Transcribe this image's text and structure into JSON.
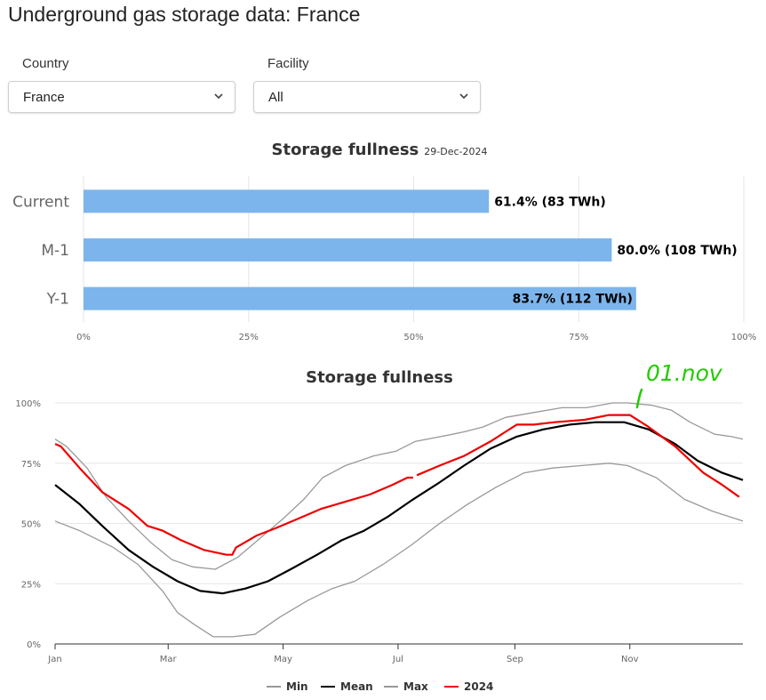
{
  "page": {
    "title": "Underground gas storage data: France"
  },
  "filters": {
    "country": {
      "label": "Country",
      "value": "France"
    },
    "facility": {
      "label": "Facility",
      "value": "All"
    }
  },
  "colors": {
    "bar": "#7cb5ec",
    "min": "#999999",
    "mean": "#000000",
    "max": "#999999",
    "y2024": "#ee0000",
    "annotation": "#22cc00",
    "grid": "#e6e6e6"
  },
  "annotation": {
    "text": "01.nov"
  },
  "chart_data": [
    {
      "type": "bar",
      "orientation": "horizontal",
      "title": "Storage fullness",
      "subtitle": "29-Dec-2024",
      "categories": [
        "Current",
        "M-1",
        "Y-1"
      ],
      "values": [
        61.4,
        80.0,
        83.7
      ],
      "data_labels": [
        "61.4% (83 TWh)",
        "80.0% (108 TWh)",
        "83.7% (112 TWh)"
      ],
      "xlim": [
        0,
        100
      ],
      "xticks": [
        "0%",
        "25%",
        "50%",
        "75%",
        "100%"
      ],
      "grid": true
    },
    {
      "type": "line",
      "title": "Storage fullness",
      "xlim_day": [
        1,
        366
      ],
      "ylim": [
        0,
        100
      ],
      "yticks": [
        "0%",
        "25%",
        "50%",
        "75%",
        "100%"
      ],
      "month_ticks": [
        {
          "label": "Jan",
          "day": 1
        },
        {
          "label": "Mar",
          "day": 61
        },
        {
          "label": "May",
          "day": 122
        },
        {
          "label": "Jul",
          "day": 183
        },
        {
          "label": "Sep",
          "day": 245
        },
        {
          "label": "Nov",
          "day": 306
        }
      ],
      "legend_position": "bottom",
      "series": [
        {
          "name": "Min",
          "color_key": "min",
          "points": [
            [
              1,
              51
            ],
            [
              14,
              47
            ],
            [
              32,
              40
            ],
            [
              45,
              33
            ],
            [
              58,
              22
            ],
            [
              66,
              13
            ],
            [
              75,
              8
            ],
            [
              85,
              3
            ],
            [
              95,
              3
            ],
            [
              107,
              4
            ],
            [
              120,
              11
            ],
            [
              135,
              18
            ],
            [
              148,
              23
            ],
            [
              160,
              26
            ],
            [
              175,
              33
            ],
            [
              190,
              41
            ],
            [
              205,
              50
            ],
            [
              220,
              58
            ],
            [
              235,
              65
            ],
            [
              250,
              71
            ],
            [
              265,
              73
            ],
            [
              280,
              74
            ],
            [
              295,
              75
            ],
            [
              305,
              74
            ],
            [
              320,
              69
            ],
            [
              335,
              60
            ],
            [
              350,
              55
            ],
            [
              366,
              51
            ]
          ]
        },
        {
          "name": "Mean",
          "color_key": "mean",
          "points": [
            [
              1,
              66
            ],
            [
              14,
              58
            ],
            [
              26,
              49
            ],
            [
              40,
              39
            ],
            [
              53,
              32
            ],
            [
              66,
              26
            ],
            [
              78,
              22
            ],
            [
              90,
              21
            ],
            [
              102,
              23
            ],
            [
              114,
              26
            ],
            [
              126,
              31
            ],
            [
              140,
              37
            ],
            [
              153,
              43
            ],
            [
              165,
              47
            ],
            [
              178,
              53
            ],
            [
              191,
              60
            ],
            [
              205,
              67
            ],
            [
              218,
              74
            ],
            [
              232,
              81
            ],
            [
              246,
              86
            ],
            [
              260,
              89
            ],
            [
              274,
              91
            ],
            [
              288,
              92
            ],
            [
              303,
              92
            ],
            [
              316,
              89
            ],
            [
              330,
              83
            ],
            [
              342,
              76
            ],
            [
              355,
              71
            ],
            [
              366,
              68
            ]
          ]
        },
        {
          "name": "Max",
          "color_key": "max",
          "points": [
            [
              1,
              85
            ],
            [
              7,
              82
            ],
            [
              18,
              73
            ],
            [
              28,
              61
            ],
            [
              40,
              51
            ],
            [
              52,
              42
            ],
            [
              63,
              35
            ],
            [
              74,
              32
            ],
            [
              86,
              31
            ],
            [
              98,
              36
            ],
            [
              110,
              44
            ],
            [
              122,
              52
            ],
            [
              133,
              60
            ],
            [
              143,
              69
            ],
            [
              155,
              74
            ],
            [
              170,
              78
            ],
            [
              182,
              80
            ],
            [
              192,
              84
            ],
            [
              212,
              87
            ],
            [
              218,
              88
            ],
            [
              228,
              90
            ],
            [
              240,
              94
            ],
            [
              255,
              96
            ],
            [
              270,
              98
            ],
            [
              283,
              98
            ],
            [
              297,
              100
            ],
            [
              305,
              100
            ],
            [
              318,
              99
            ],
            [
              328,
              97
            ],
            [
              338,
              92
            ],
            [
              351,
              87
            ],
            [
              360,
              86
            ],
            [
              366,
              85
            ]
          ]
        },
        {
          "name": "2024",
          "color_key": "y2024",
          "points": [
            [
              1,
              83
            ],
            [
              4,
              82
            ],
            [
              14,
              73
            ],
            [
              26,
              63
            ],
            [
              40,
              56
            ],
            [
              50,
              49
            ],
            [
              58,
              47
            ],
            [
              68,
              43
            ],
            [
              80,
              39
            ],
            [
              92,
              37
            ],
            [
              95,
              37
            ],
            [
              97,
              40
            ],
            [
              108,
              45
            ],
            [
              118,
              48
            ],
            [
              130,
              52
            ],
            [
              142,
              56
            ],
            [
              155,
              59
            ],
            [
              168,
              62
            ],
            [
              180,
              66
            ],
            [
              188,
              69
            ],
            [
              191,
              69
            ],
            [
              null,
              null
            ],
            [
              193,
              70
            ],
            [
              205,
              74
            ],
            [
              218,
              78
            ],
            [
              232,
              84
            ],
            [
              240,
              88
            ],
            [
              246,
              91
            ],
            [
              255,
              91
            ],
            [
              266,
              92
            ],
            [
              282,
              93
            ],
            [
              295,
              95
            ],
            [
              306,
              95
            ],
            [
              316,
              90
            ],
            [
              330,
              82
            ],
            [
              345,
              71
            ],
            [
              355,
              66
            ],
            [
              364,
              61
            ]
          ]
        }
      ]
    }
  ]
}
